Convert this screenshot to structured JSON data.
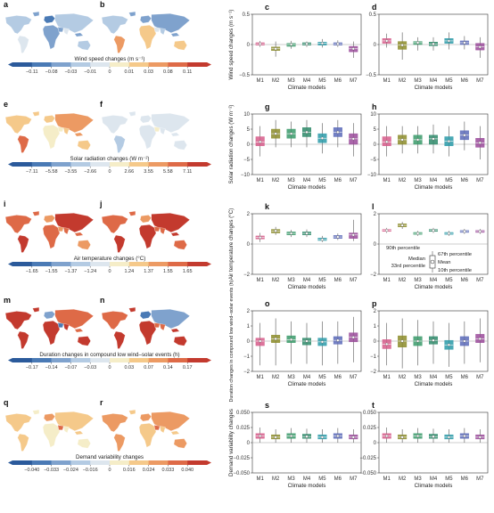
{
  "colors": {
    "map_colors": [
      "#2b5a9b",
      "#4a7ab5",
      "#7fa2cd",
      "#b4cbe3",
      "#dde6ee",
      "#f5edc8",
      "#f5c98a",
      "#ec9a63",
      "#de6a47",
      "#c33a2e"
    ],
    "model_colors": [
      "#d65c8a",
      "#8c8c2a",
      "#3a9a6a",
      "#2e8a6a",
      "#2a9aa8",
      "#5a6ab8",
      "#9a4a9a"
    ]
  },
  "model_labels": [
    "M1",
    "M2",
    "M3",
    "M4",
    "M5",
    "M6",
    "M7"
  ],
  "x_axis_label": "Climate models",
  "rows": [
    {
      "map_labels": [
        "a",
        "b"
      ],
      "colorbar_title": "Wind speed changes (m s⁻¹)",
      "colorbar_ticks": [
        "−0.11",
        "−0.08",
        "−0.03",
        "−0.01",
        "0",
        "0.01",
        "0.03",
        "0.08",
        "0.11"
      ],
      "map_levels": {
        "a": [
          3,
          2,
          4,
          1,
          2,
          3,
          2,
          4,
          2,
          3
        ],
        "b": [
          3,
          2,
          7,
          2,
          6,
          2,
          4,
          3,
          2,
          6
        ]
      },
      "panels": [
        {
          "label": "c",
          "ylabel": "Wind speed changes (m s⁻¹)",
          "yticks": [
            "0.5",
            "0",
            "−0.5"
          ],
          "ylim": [
            -0.5,
            0.5
          ],
          "data": [
            [
              -0.04,
              -0.01,
              0.01,
              0.03,
              0.06
            ],
            [
              -0.2,
              -0.1,
              -0.07,
              -0.04,
              0.05
            ],
            [
              -0.07,
              -0.03,
              0,
              0.02,
              0.06
            ],
            [
              -0.04,
              -0.01,
              0.01,
              0.03,
              0.05
            ],
            [
              -0.05,
              -0.01,
              0.02,
              0.04,
              0.09
            ],
            [
              -0.04,
              -0.01,
              0.01,
              0.03,
              0.07
            ],
            [
              -0.22,
              -0.12,
              -0.07,
              -0.03,
              0.05
            ]
          ]
        },
        {
          "label": "d",
          "ylabel": "",
          "yticks": [
            "0.5",
            "0",
            "−0.5"
          ],
          "ylim": [
            -0.5,
            0.5
          ],
          "data": [
            [
              -0.05,
              0.02,
              0.06,
              0.1,
              0.18
            ],
            [
              -0.25,
              -0.08,
              -0.01,
              0.05,
              0.2
            ],
            [
              -0.1,
              0,
              0.03,
              0.05,
              0.12
            ],
            [
              -0.1,
              -0.02,
              0.01,
              0.04,
              0.12
            ],
            [
              -0.08,
              0.02,
              0.06,
              0.1,
              0.2
            ],
            [
              -0.08,
              0,
              0.03,
              0.06,
              0.14
            ],
            [
              -0.22,
              -0.09,
              -0.04,
              0.02,
              0.12
            ]
          ]
        }
      ]
    },
    {
      "map_labels": [
        "e",
        "f"
      ],
      "colorbar_title": "Solar radiation changes (W m⁻²)",
      "colorbar_ticks": [
        "−7.11",
        "−5.58",
        "−3.55",
        "−2.66",
        "0",
        "2.66",
        "3.55",
        "5.58",
        "7.11"
      ],
      "map_levels": {
        "a": [
          6,
          6,
          8,
          6,
          5,
          7,
          5,
          6,
          7,
          6
        ],
        "b": [
          4,
          4,
          3,
          4,
          4,
          4,
          5,
          4,
          4,
          4
        ]
      },
      "panels": [
        {
          "label": "g",
          "ylabel": "Solar radiation changes (W m⁻²)",
          "yticks": [
            "10",
            "5",
            "0",
            "−5",
            "−10"
          ],
          "ylim": [
            -10,
            10
          ],
          "data": [
            [
              -4,
              -0.5,
              0.8,
              2.5,
              6
            ],
            [
              -1,
              2,
              3.5,
              5,
              8
            ],
            [
              -1,
              2,
              3.5,
              5,
              7.5
            ],
            [
              -1,
              2.5,
              4,
              5.5,
              8
            ],
            [
              -3,
              0.5,
              2,
              3.5,
              7
            ],
            [
              -1,
              2.5,
              4,
              5.5,
              8
            ],
            [
              -4,
              0,
              1.8,
              3.5,
              7
            ]
          ]
        },
        {
          "label": "h",
          "ylabel": "",
          "yticks": [
            "10",
            "5",
            "0",
            "−5",
            "−10"
          ],
          "ylim": [
            -10,
            10
          ],
          "data": [
            [
              -4,
              -0.5,
              0.8,
              2.5,
              6
            ],
            [
              -3,
              0,
              1.5,
              3,
              6
            ],
            [
              -3,
              0,
              1.5,
              3,
              6
            ],
            [
              -3,
              0,
              1.8,
              3,
              6.5
            ],
            [
              -4,
              -0.5,
              1,
              2.5,
              6
            ],
            [
              -2,
              1.5,
              3,
              4.5,
              7.5
            ],
            [
              -5,
              -1,
              0.5,
              2,
              6
            ]
          ]
        }
      ]
    },
    {
      "map_labels": [
        "i",
        "j"
      ],
      "colorbar_title": "Air temperature changes (°C)",
      "colorbar_ticks": [
        "−1.65",
        "−1.55",
        "−1.37",
        "−1.24",
        "0",
        "1.24",
        "1.37",
        "1.55",
        "1.65"
      ],
      "map_levels": {
        "a": [
          8,
          8,
          9,
          7,
          8,
          9,
          7,
          8,
          8,
          7
        ],
        "b": [
          8,
          8,
          9,
          7,
          9,
          9,
          8,
          8,
          9,
          8
        ]
      },
      "panels": [
        {
          "label": "k",
          "ylabel": "Air temperature changes (°C)",
          "yticks": [
            "2",
            "0",
            "−2"
          ],
          "ylim": [
            -3,
            3
          ],
          "data": [
            [
              0.2,
              0.5,
              0.65,
              0.8,
              1.1
            ],
            [
              0.9,
              1.1,
              1.3,
              1.45,
              1.7
            ],
            [
              0.7,
              0.9,
              1.05,
              1.2,
              1.4
            ],
            [
              0.7,
              0.9,
              1.05,
              1.2,
              1.45
            ],
            [
              0.2,
              0.35,
              0.45,
              0.6,
              0.8
            ],
            [
              0.4,
              0.55,
              0.7,
              0.85,
              1.05
            ],
            [
              0.3,
              0.55,
              0.9,
              1.1,
              2.4
            ]
          ]
        },
        {
          "label": "l",
          "ylabel": "",
          "yticks": [
            "2",
            "0",
            "−2"
          ],
          "ylim": [
            -3,
            3
          ],
          "data": [
            [
              1.1,
              1.25,
              1.35,
              1.45,
              1.6
            ],
            [
              1.5,
              1.7,
              1.85,
              2,
              2.2
            ],
            [
              0.8,
              0.95,
              1.05,
              1.15,
              1.3
            ],
            [
              1.1,
              1.25,
              1.35,
              1.45,
              1.6
            ],
            [
              0.8,
              0.95,
              1.05,
              1.15,
              1.3
            ],
            [
              1,
              1.15,
              1.25,
              1.35,
              1.5
            ],
            [
              1,
              1.15,
              1.25,
              1.35,
              1.5
            ]
          ]
        }
      ],
      "legend": {
        "p90": "90th percentile",
        "p67": "67th percentile",
        "median": "Median",
        "mean": "Mean",
        "p33": "33rd percentile",
        "p10": "10th percentile"
      }
    },
    {
      "map_labels": [
        "m",
        "n"
      ],
      "colorbar_title": "Duration changes in compound low wind–solar events (h)",
      "colorbar_ticks": [
        "−0.17",
        "−0.14",
        "−0.07",
        "−0.03",
        "0",
        "0.03",
        "0.07",
        "0.14",
        "0.17"
      ],
      "map_levels": {
        "a": [
          9,
          9,
          9,
          2,
          9,
          8,
          1,
          9,
          8,
          9
        ],
        "b": [
          8,
          9,
          9,
          1,
          9,
          2,
          8,
          8,
          9,
          9
        ]
      },
      "panels": [
        {
          "label": "o",
          "ylabel": "Duration changes in compound low wind–solar events (h)",
          "yticks": [
            "2",
            "1",
            "0",
            "−1",
            "−2"
          ],
          "ylim": [
            -2,
            2
          ],
          "data": [
            [
              -1.6,
              -0.3,
              0,
              0.2,
              1.2
            ],
            [
              -1.6,
              -0.1,
              0.15,
              0.4,
              1.5
            ],
            [
              -1.5,
              -0.1,
              0.1,
              0.35,
              1.3
            ],
            [
              -1.5,
              -0.25,
              0,
              0.2,
              1.2
            ],
            [
              -1.6,
              -0.3,
              -0.05,
              0.2,
              1.3
            ],
            [
              -1.5,
              -0.2,
              0.05,
              0.3,
              1.3
            ],
            [
              -1.4,
              -0.05,
              0.25,
              0.55,
              1.6
            ]
          ]
        },
        {
          "label": "p",
          "ylabel": "",
          "yticks": [
            "2",
            "1",
            "0",
            "−1",
            "−2"
          ],
          "ylim": [
            -2,
            2
          ],
          "data": [
            [
              -1.6,
              -0.5,
              -0.2,
              0.1,
              1.2
            ],
            [
              -1.8,
              -0.4,
              0,
              0.35,
              1.5
            ],
            [
              -1.6,
              -0.3,
              0,
              0.3,
              1.4
            ],
            [
              -1.5,
              -0.2,
              0.05,
              0.3,
              1.3
            ],
            [
              -1.7,
              -0.55,
              -0.25,
              0.05,
              1.2
            ],
            [
              -1.5,
              -0.3,
              0,
              0.3,
              1.3
            ],
            [
              -1.4,
              -0.1,
              0.15,
              0.45,
              1.5
            ]
          ]
        }
      ]
    },
    {
      "map_labels": [
        "q",
        "r"
      ],
      "colorbar_title": "Demand variability changes",
      "colorbar_ticks": [
        "−0.040",
        "−0.033",
        "−0.024",
        "−0.016",
        "0",
        "0.016",
        "0.024",
        "0.033",
        "0.040"
      ],
      "map_levels": {
        "a": [
          6,
          5,
          6,
          7,
          5,
          6,
          8,
          5,
          6,
          5
        ],
        "b": [
          7,
          6,
          7,
          7,
          6,
          7,
          8,
          6,
          6,
          7
        ]
      },
      "panels": [
        {
          "label": "s",
          "ylabel": "Demand variability changes",
          "yticks": [
            "0.050",
            "0.025",
            "0",
            "−0.025",
            "−0.050"
          ],
          "ylim": [
            -0.05,
            0.05
          ],
          "data": [
            [
              0,
              0.007,
              0.011,
              0.015,
              0.025
            ],
            [
              0,
              0.006,
              0.009,
              0.013,
              0.022
            ],
            [
              0,
              0.007,
              0.011,
              0.015,
              0.024
            ],
            [
              0,
              0.007,
              0.01,
              0.014,
              0.023
            ],
            [
              0,
              0.006,
              0.009,
              0.013,
              0.022
            ],
            [
              0,
              0.007,
              0.011,
              0.015,
              0.024
            ],
            [
              0,
              0.006,
              0.009,
              0.013,
              0.022
            ]
          ]
        },
        {
          "label": "t",
          "ylabel": "",
          "yticks": [
            "0.050",
            "0.025",
            "0",
            "−0.025",
            "−0.050"
          ],
          "ylim": [
            -0.05,
            0.05
          ],
          "data": [
            [
              0,
              0.007,
              0.011,
              0.015,
              0.025
            ],
            [
              0,
              0.006,
              0.009,
              0.013,
              0.022
            ],
            [
              0,
              0.007,
              0.011,
              0.015,
              0.024
            ],
            [
              0,
              0.007,
              0.01,
              0.014,
              0.023
            ],
            [
              0,
              0.006,
              0.009,
              0.013,
              0.022
            ],
            [
              0,
              0.007,
              0.011,
              0.015,
              0.024
            ],
            [
              0,
              0.006,
              0.009,
              0.013,
              0.022
            ]
          ]
        }
      ]
    }
  ]
}
